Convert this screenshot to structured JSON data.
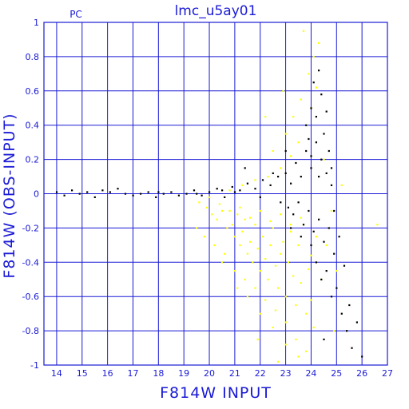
{
  "chart_data": {
    "type": "scatter",
    "title": "lmc_u5ay01",
    "corner_label": "PC",
    "xlabel": "F814W INPUT",
    "ylabel": "F814W (OBS-INPUT)",
    "xlim": [
      13.5,
      27
    ],
    "ylim": [
      -1,
      1
    ],
    "x_ticks": [
      14,
      15,
      16,
      17,
      18,
      19,
      20,
      21,
      22,
      23,
      24,
      25,
      26,
      27
    ],
    "y_ticks": [
      -1,
      -0.8,
      -0.6,
      -0.4,
      -0.2,
      0,
      0.2,
      0.4,
      0.6,
      0.8,
      1
    ],
    "x_tick_labels": [
      "14",
      "15",
      "16",
      "17",
      "18",
      "19",
      "20",
      "21",
      "22",
      "23",
      "24",
      "25",
      "26",
      "27"
    ],
    "y_tick_labels": [
      "-1",
      "-0.8",
      "-0.6",
      "-0.4",
      "-0.2",
      "0",
      "0.2",
      "0.4",
      "0.6",
      "0.8",
      "1"
    ],
    "grid": true,
    "colors": {
      "frame": "#1a1ad6",
      "grid": "#1a1ad6",
      "series_black": "#000000",
      "series_yellow": "#ffff00"
    },
    "series": [
      {
        "color": "#ffff00",
        "points": [
          [
            19.6,
            -0.05
          ],
          [
            19.9,
            -0.08
          ],
          [
            20.1,
            -0.12
          ],
          [
            20.3,
            -0.15
          ],
          [
            20.5,
            -0.1
          ],
          [
            20.7,
            -0.2
          ],
          [
            20.9,
            -0.18
          ],
          [
            21.0,
            -0.25
          ],
          [
            21.1,
            -0.12
          ],
          [
            21.2,
            -0.3
          ],
          [
            21.3,
            -0.22
          ],
          [
            21.4,
            -0.15
          ],
          [
            21.5,
            -0.35
          ],
          [
            21.6,
            -0.28
          ],
          [
            21.7,
            -0.4
          ],
          [
            21.8,
            -0.18
          ],
          [
            21.9,
            -0.32
          ],
          [
            22.0,
            -0.45
          ],
          [
            22.1,
            -0.25
          ],
          [
            22.2,
            -0.38
          ],
          [
            22.3,
            -0.5
          ],
          [
            22.4,
            -0.3
          ],
          [
            22.5,
            -0.2
          ],
          [
            22.6,
            -0.42
          ],
          [
            22.7,
            -0.55
          ],
          [
            22.8,
            -0.35
          ],
          [
            22.9,
            -0.28
          ],
          [
            23.0,
            -0.6
          ],
          [
            23.1,
            -0.4
          ],
          [
            23.2,
            -0.22
          ],
          [
            23.3,
            -0.48
          ],
          [
            23.4,
            -0.65
          ],
          [
            23.5,
            -0.3
          ],
          [
            23.6,
            -0.52
          ],
          [
            23.7,
            -0.18
          ],
          [
            23.8,
            -0.7
          ],
          [
            23.9,
            -0.44
          ],
          [
            24.0,
            -0.36
          ],
          [
            24.1,
            -0.78
          ],
          [
            24.2,
            -0.25
          ],
          [
            20.2,
            -0.3
          ],
          [
            20.6,
            -0.35
          ],
          [
            21.0,
            -0.45
          ],
          [
            21.4,
            -0.5
          ],
          [
            21.8,
            -0.55
          ],
          [
            22.2,
            -0.62
          ],
          [
            22.6,
            -0.68
          ],
          [
            23.0,
            -0.75
          ],
          [
            23.4,
            -0.85
          ],
          [
            23.8,
            -0.92
          ],
          [
            20.8,
            0.02
          ],
          [
            21.3,
            0.05
          ],
          [
            21.8,
            0.08
          ],
          [
            22.3,
            0.1
          ],
          [
            22.8,
            0.15
          ],
          [
            23.2,
            0.22
          ],
          [
            23.5,
            0.3
          ],
          [
            23.8,
            0.4
          ],
          [
            24.0,
            0.5
          ],
          [
            24.2,
            0.62
          ],
          [
            22.5,
            0.25
          ],
          [
            23.0,
            0.35
          ],
          [
            23.3,
            0.45
          ],
          [
            23.6,
            0.55
          ],
          [
            23.9,
            0.7
          ],
          [
            24.1,
            0.8
          ],
          [
            24.3,
            0.88
          ],
          [
            23.7,
            0.95
          ],
          [
            22.9,
            0.6
          ],
          [
            22.2,
            0.45
          ],
          [
            20.0,
            -0.02
          ],
          [
            20.4,
            -0.06
          ],
          [
            20.8,
            -0.1
          ],
          [
            21.2,
            -0.08
          ],
          [
            21.6,
            -0.14
          ],
          [
            22.0,
            -0.1
          ],
          [
            22.4,
            -0.16
          ],
          [
            22.8,
            -0.12
          ],
          [
            23.2,
            -0.18
          ],
          [
            23.6,
            -0.14
          ],
          [
            21.5,
            -0.6
          ],
          [
            22.0,
            -0.7
          ],
          [
            22.5,
            -0.78
          ],
          [
            23.0,
            -0.88
          ],
          [
            23.5,
            -0.95
          ],
          [
            24.0,
            -0.62
          ],
          [
            24.4,
            -0.5
          ],
          [
            24.6,
            -0.3
          ],
          [
            24.8,
            -0.1
          ],
          [
            24.5,
            0.2
          ],
          [
            26.6,
            -0.18
          ],
          [
            25.2,
            0.05
          ],
          [
            25.0,
            -0.45
          ],
          [
            24.9,
            -0.8
          ],
          [
            21.9,
            -0.85
          ],
          [
            22.7,
            -0.98
          ],
          [
            19.5,
            -0.2
          ],
          [
            19.8,
            -0.25
          ],
          [
            20.5,
            -0.4
          ],
          [
            21.1,
            -0.55
          ]
        ]
      },
      {
        "color": "#000000",
        "points": [
          [
            14.0,
            0.01
          ],
          [
            14.3,
            -0.01
          ],
          [
            14.6,
            0.02
          ],
          [
            14.9,
            0.0
          ],
          [
            15.2,
            0.01
          ],
          [
            15.5,
            -0.02
          ],
          [
            15.8,
            0.02
          ],
          [
            16.1,
            0.01
          ],
          [
            16.4,
            0.03
          ],
          [
            16.7,
            0.0
          ],
          [
            17.0,
            -0.01
          ],
          [
            17.3,
            0.0
          ],
          [
            17.6,
            0.01
          ],
          [
            17.9,
            -0.02
          ],
          [
            18.2,
            0.0
          ],
          [
            18.5,
            0.01
          ],
          [
            18.8,
            -0.01
          ],
          [
            19.1,
            0.0
          ],
          [
            19.4,
            0.02
          ],
          [
            19.7,
            -0.01
          ],
          [
            20.0,
            0.01
          ],
          [
            20.3,
            0.03
          ],
          [
            20.6,
            -0.02
          ],
          [
            20.9,
            0.04
          ],
          [
            21.2,
            0.02
          ],
          [
            21.5,
            0.06
          ],
          [
            21.8,
            0.03
          ],
          [
            22.1,
            0.08
          ],
          [
            22.4,
            0.05
          ],
          [
            22.7,
            0.1
          ],
          [
            23.0,
            0.12
          ],
          [
            23.2,
            0.06
          ],
          [
            23.4,
            0.18
          ],
          [
            23.6,
            0.1
          ],
          [
            23.8,
            0.25
          ],
          [
            24.0,
            0.15
          ],
          [
            24.2,
            0.3
          ],
          [
            24.4,
            0.2
          ],
          [
            24.6,
            0.12
          ],
          [
            24.8,
            0.05
          ],
          [
            23.1,
            -0.08
          ],
          [
            23.3,
            -0.12
          ],
          [
            23.5,
            -0.05
          ],
          [
            23.7,
            -0.18
          ],
          [
            23.9,
            -0.1
          ],
          [
            24.1,
            -0.22
          ],
          [
            24.3,
            -0.15
          ],
          [
            24.5,
            -0.28
          ],
          [
            24.7,
            -0.2
          ],
          [
            24.9,
            -0.1
          ],
          [
            23.8,
            0.4
          ],
          [
            24.0,
            0.5
          ],
          [
            24.2,
            0.45
          ],
          [
            24.4,
            0.58
          ],
          [
            24.1,
            0.65
          ],
          [
            24.3,
            0.72
          ],
          [
            23.9,
            0.32
          ],
          [
            24.5,
            0.35
          ],
          [
            24.6,
            0.48
          ],
          [
            24.7,
            0.25
          ],
          [
            24.2,
            -0.4
          ],
          [
            24.4,
            -0.5
          ],
          [
            24.6,
            -0.45
          ],
          [
            24.8,
            -0.6
          ],
          [
            25.0,
            -0.55
          ],
          [
            25.2,
            -0.7
          ],
          [
            25.4,
            -0.8
          ],
          [
            25.6,
            -0.9
          ],
          [
            25.8,
            -0.75
          ],
          [
            26.0,
            -0.95
          ],
          [
            24.5,
            -0.85
          ],
          [
            24.9,
            -0.35
          ],
          [
            25.1,
            -0.25
          ],
          [
            25.3,
            -0.42
          ],
          [
            25.5,
            -0.65
          ],
          [
            24.0,
            -0.3
          ],
          [
            23.6,
            -0.25
          ],
          [
            23.2,
            -0.2
          ],
          [
            22.8,
            -0.05
          ],
          [
            22.5,
            0.12
          ],
          [
            21.4,
            0.15
          ],
          [
            23.0,
            0.25
          ],
          [
            24.0,
            0.22
          ],
          [
            24.3,
            0.1
          ],
          [
            24.8,
            0.15
          ],
          [
            22.0,
            -0.02
          ],
          [
            21.0,
            0.01
          ],
          [
            20.5,
            0.02
          ],
          [
            19.5,
            0.0
          ],
          [
            18.0,
            0.01
          ]
        ]
      }
    ]
  }
}
